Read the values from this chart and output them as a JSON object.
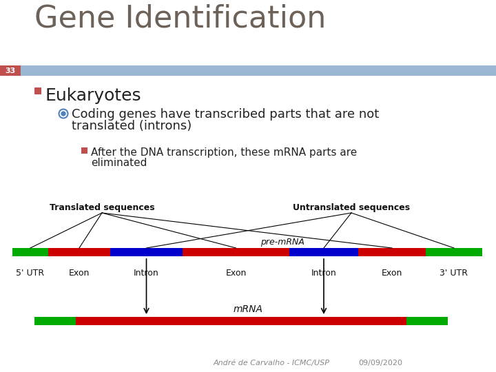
{
  "title": "Gene Identification",
  "title_color": "#6d6259",
  "title_fontsize": 32,
  "slide_number": "33",
  "slide_num_bg": "#c0504d",
  "slide_num_color": "#ffffff",
  "header_bar_color": "#9ab7d3",
  "bg_color": "#ffffff",
  "bullet1": "Eukaryotes",
  "bullet1_marker_color": "#c0504d",
  "bullet2_line1": "Coding genes have transcribed parts that are not",
  "bullet2_line2": "translated (introns)",
  "bullet2_marker_color": "#4f81bd",
  "bullet3_line1": "After the DNA transcription, these mRNA parts are",
  "bullet3_line2": "eliminated",
  "bullet3_marker_color": "#c0504d",
  "label_translated": "Translated sequences",
  "label_untranslated": "Untranslated sequences",
  "label_premrna": "pre-mRNA",
  "label_mrna": "mRNA",
  "footer": "André de Carvalho - ICMC/USP",
  "footer_date": "09/09/2020",
  "color_green": "#00aa00",
  "color_red": "#cc0000",
  "color_blue": "#0000cc",
  "color_dark": "#111111",
  "color_gray": "#888888"
}
